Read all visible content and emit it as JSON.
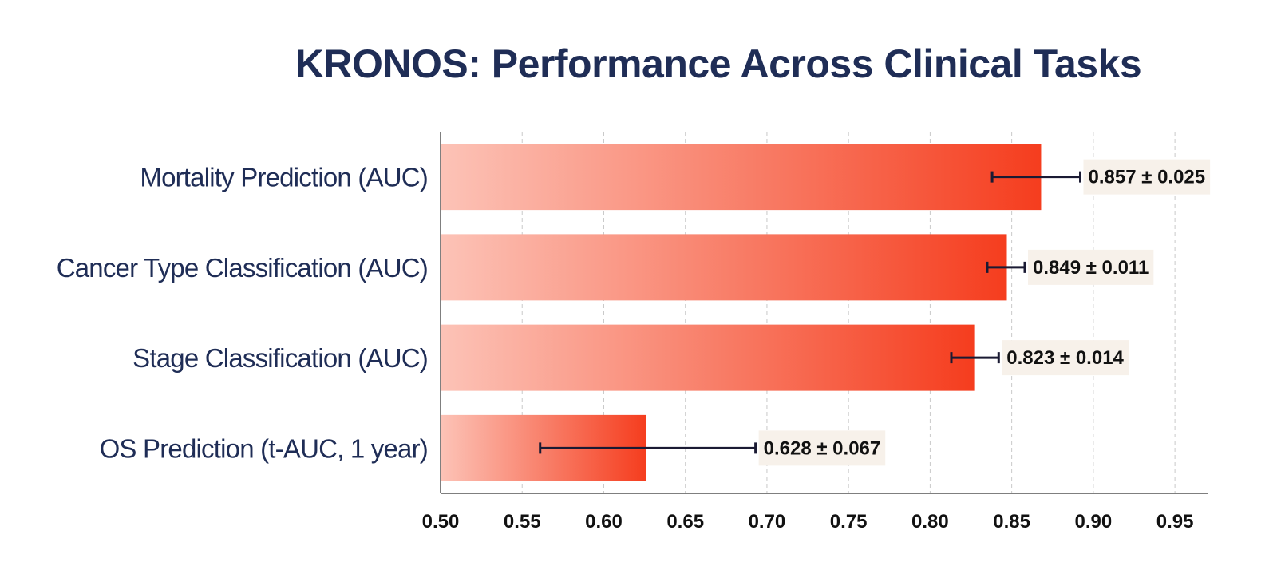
{
  "chart_data": {
    "type": "bar",
    "orientation": "horizontal",
    "title": "KRONOS: Performance Across Clinical Tasks",
    "xlabel": "",
    "ylabel": "",
    "xlim": [
      0.5,
      0.97
    ],
    "xticks": [
      "0.50",
      "0.55",
      "0.60",
      "0.65",
      "0.70",
      "0.75",
      "0.80",
      "0.85",
      "0.90",
      "0.95"
    ],
    "grid": "vertical-dashed",
    "categories": [
      "Mortality Prediction (AUC)",
      "Cancer Type Classification (AUC)",
      "Stage Classification (AUC)",
      "OS Prediction (t-AUC, 1 year)"
    ],
    "values": [
      0.868,
      0.847,
      0.827,
      0.626
    ],
    "errors": [
      {
        "low": 0.838,
        "high": 0.892
      },
      {
        "low": 0.835,
        "high": 0.858
      },
      {
        "low": 0.813,
        "high": 0.842
      },
      {
        "low": 0.561,
        "high": 0.693
      }
    ],
    "data_labels": [
      "0.857 ± 0.025",
      "0.849 ± 0.011",
      "0.823 ± 0.014",
      "0.628 ± 0.067"
    ]
  },
  "colors": {
    "title": "#1f2d56",
    "category_label": "#1f2d56",
    "tick_label": "#111111",
    "bar_gradient_start": "#fcc3b7",
    "bar_gradient_end": "#f53d1e",
    "error_bar": "#1a1a33",
    "label_box": "#f7f1ea",
    "grid": "#c9c9c9",
    "axis": "#555555"
  }
}
